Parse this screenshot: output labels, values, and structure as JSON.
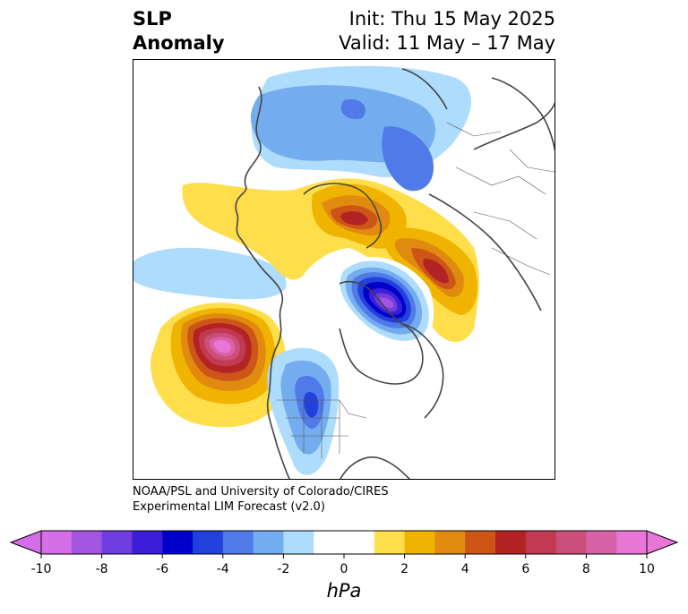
{
  "header": {
    "title_line1": "SLP",
    "title_line2": "Anomaly",
    "init_text": "Init: Thu 15 May 2025",
    "valid_text": "Valid: 11 May – 17 May"
  },
  "credit": {
    "line1": "NOAA/PSL and University of Colorado/CIRES",
    "line2": "Experimental LIM Forecast (v2.0)"
  },
  "colorbar": {
    "unit": "hPa",
    "ticks": [
      "-10",
      "-8",
      "-6",
      "-4",
      "-2",
      "0",
      "2",
      "4",
      "6",
      "8",
      "10"
    ],
    "levels": [
      -10,
      -9,
      -8,
      -7,
      -6,
      -5,
      -4,
      -3,
      -2,
      -1,
      1,
      2,
      3,
      4,
      5,
      6,
      7,
      8,
      9,
      10
    ],
    "colors": [
      "#d56ee8",
      "#a455e0",
      "#6f3de0",
      "#3c1ed8",
      "#0000cc",
      "#2140dc",
      "#4f7ae8",
      "#74acf0",
      "#aedcfc",
      "#ffffff",
      "#fede4a",
      "#f0b300",
      "#e08b10",
      "#cc5517",
      "#b32323",
      "#c13a52",
      "#cc4e7a",
      "#d862a8",
      "#e876d6"
    ],
    "extend_min_color": "#d56ee8",
    "extend_max_color": "#e876d6"
  },
  "map_features": {
    "anomalies": [
      {
        "name": "north-pacific-high",
        "peak_hpa": 10
      },
      {
        "name": "hudson-bay-low",
        "peak_hpa": -9
      },
      {
        "name": "greenland-high",
        "peak_hpa": 6
      },
      {
        "name": "labrador-high",
        "peak_hpa": 6
      },
      {
        "name": "central-us-low",
        "peak_hpa": -6
      },
      {
        "name": "siberia-low",
        "peak_hpa": -5
      }
    ]
  }
}
